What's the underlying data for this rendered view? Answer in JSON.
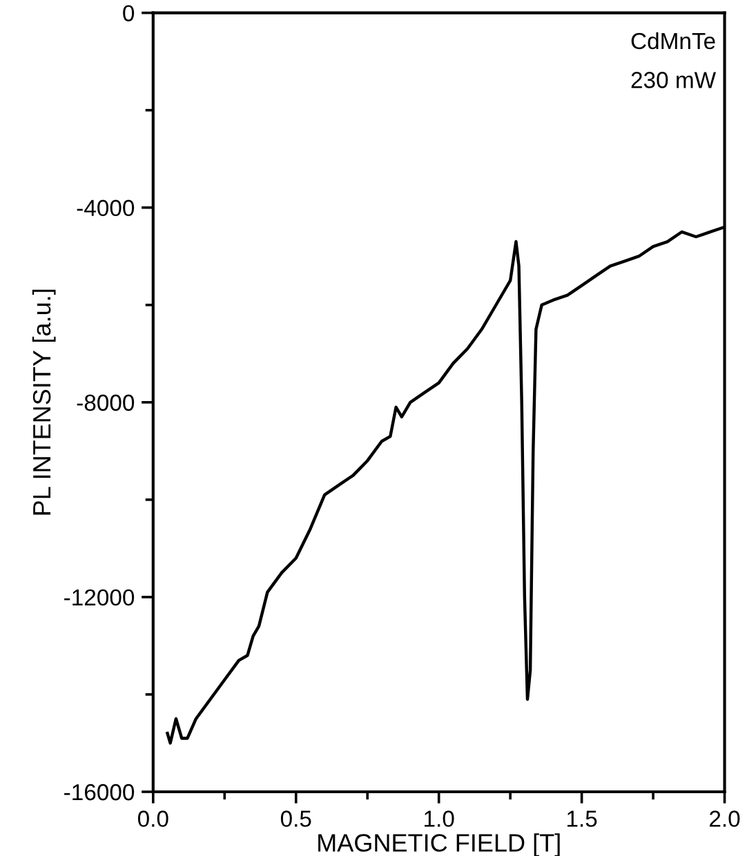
{
  "chart_data": {
    "type": "line",
    "xlabel": "MAGNETIC FIELD [T]",
    "ylabel": "PL INTENSITY [a.u.]",
    "annotations": [
      "CdMnTe",
      "230 mW"
    ],
    "xlim": [
      0,
      2
    ],
    "xticks": [
      {
        "value": 0,
        "label": "0.0"
      },
      {
        "value": 0.5,
        "label": "0.5"
      },
      {
        "value": 1,
        "label": "1.0"
      },
      {
        "value": 1.5,
        "label": "1.5"
      },
      {
        "value": 2,
        "label": "2.0"
      }
    ],
    "ylim": [
      -16000,
      0
    ],
    "yticks": [
      -16000,
      -12000,
      -8000,
      -4000,
      0
    ],
    "grid": false,
    "legend": false,
    "marker": "none",
    "line_style": "solid",
    "series": [
      {
        "color": "#000000",
        "x": [
          0.05,
          0.06,
          0.08,
          0.1,
          0.12,
          0.15,
          0.2,
          0.25,
          0.3,
          0.33,
          0.35,
          0.37,
          0.4,
          0.45,
          0.5,
          0.55,
          0.6,
          0.65,
          0.7,
          0.75,
          0.8,
          0.83,
          0.85,
          0.87,
          0.9,
          0.95,
          1.0,
          1.05,
          1.1,
          1.15,
          1.2,
          1.25,
          1.27,
          1.28,
          1.29,
          1.3,
          1.31,
          1.32,
          1.33,
          1.34,
          1.36,
          1.4,
          1.45,
          1.5,
          1.55,
          1.6,
          1.65,
          1.7,
          1.75,
          1.8,
          1.85,
          1.9,
          1.95,
          2.0
        ],
        "values": [
          -14800,
          -15000,
          -14500,
          -14900,
          -14900,
          -14500,
          -14100,
          -13700,
          -13300,
          -13200,
          -12800,
          -12600,
          -11900,
          -11500,
          -11200,
          -10600,
          -9900,
          -9700,
          -9500,
          -9200,
          -8800,
          -8700,
          -8100,
          -8300,
          -8000,
          -7800,
          -7600,
          -7200,
          -6900,
          -6500,
          -6000,
          -5500,
          -4700,
          -5200,
          -8000,
          -12000,
          -14100,
          -13500,
          -9000,
          -6500,
          -6000,
          -5900,
          -5800,
          -5600,
          -5400,
          -5200,
          -5100,
          -5000,
          -4800,
          -4700,
          -4500,
          -4600,
          -4500,
          -4400
        ]
      }
    ]
  }
}
